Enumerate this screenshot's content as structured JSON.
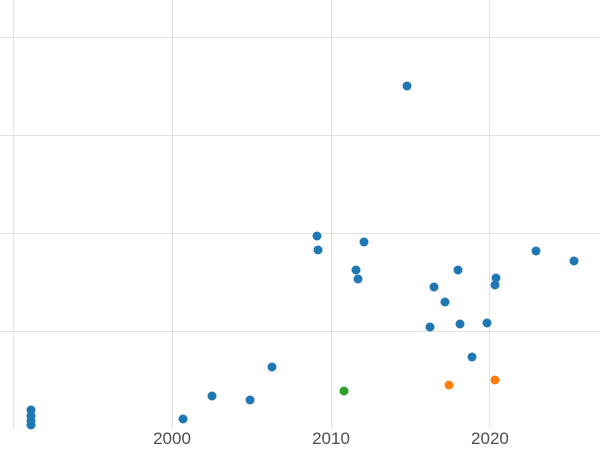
{
  "figure": {
    "background_color": "#ffffff"
  },
  "chart_data": {
    "type": "scatter",
    "title": "",
    "xlabel": "",
    "ylabel": "",
    "legend": "none",
    "x_ticks": [
      {
        "value": 2000,
        "label": "2000"
      },
      {
        "value": 2010,
        "label": "2010"
      },
      {
        "value": 2020,
        "label": "2020"
      }
    ],
    "axis": {
      "x_range": [
        1989.18,
        2026.92
      ],
      "y_range": [
        -0.21,
        4.38
      ],
      "x_gridlines": [
        1990,
        2000,
        2010,
        2020
      ],
      "y_gridlines": [
        1,
        2,
        3,
        4
      ],
      "grid": true,
      "grid_color": "#e2e2e2",
      "tick_label_color": "#4d4d4d"
    },
    "marker_size_px": 9,
    "series": [
      {
        "name": "blue",
        "color": "#1f77b4",
        "points": [
          [
            1991.1,
            0.2
          ],
          [
            1991.1,
            0.14
          ],
          [
            1991.1,
            0.09
          ],
          [
            1991.1,
            0.04
          ],
          [
            2000.7,
            0.11
          ],
          [
            2002.5,
            0.34
          ],
          [
            2004.9,
            0.3
          ],
          [
            2006.3,
            0.64
          ],
          [
            2009.1,
            1.97
          ],
          [
            2009.2,
            1.83
          ],
          [
            2011.6,
            1.63
          ],
          [
            2011.7,
            1.53
          ],
          [
            2012.1,
            1.91
          ],
          [
            2014.8,
            3.5
          ],
          [
            2016.2,
            1.04
          ],
          [
            2016.5,
            1.45
          ],
          [
            2017.2,
            1.3
          ],
          [
            2018.0,
            1.63
          ],
          [
            2018.1,
            1.08
          ],
          [
            2018.9,
            0.74
          ],
          [
            2019.8,
            1.09
          ],
          [
            2020.3,
            1.47
          ],
          [
            2020.4,
            1.54
          ],
          [
            2022.9,
            1.82
          ],
          [
            2025.3,
            1.72
          ]
        ]
      },
      {
        "name": "green",
        "color": "#2ca02c",
        "points": [
          [
            2010.8,
            0.39
          ]
        ]
      },
      {
        "name": "orange",
        "color": "#ff7f0e",
        "points": [
          [
            2017.4,
            0.45
          ],
          [
            2020.3,
            0.5
          ]
        ]
      }
    ]
  }
}
